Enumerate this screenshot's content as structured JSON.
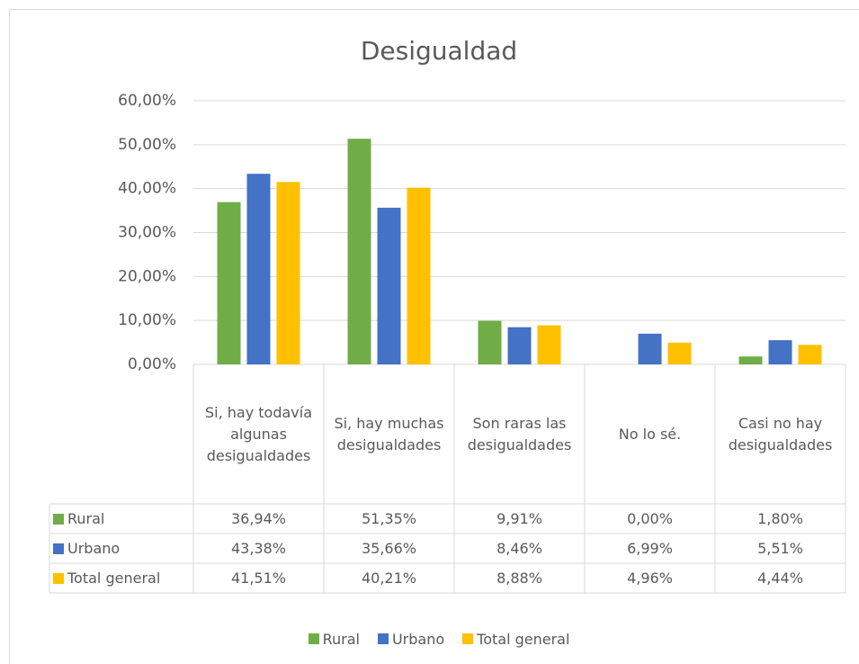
{
  "chart_data": {
    "type": "bar",
    "title": "Desigualdad",
    "categories": [
      "Si, hay todavía algunas desigualdades",
      "Si, hay muchas desigualdades",
      "Son raras las desigualdades",
      "No lo sé.",
      "Casi no hay desigualdades"
    ],
    "series": [
      {
        "name": "Rural",
        "color": "#70ad47",
        "values": [
          36.94,
          51.35,
          9.91,
          0,
          1.8
        ],
        "value_labels": [
          "36,94%",
          "51,35%",
          "9,91%",
          "0,00%",
          "1,80%"
        ]
      },
      {
        "name": "Urbano",
        "color": "#4472c4",
        "values": [
          43.38,
          35.66,
          8.46,
          6.99,
          5.51
        ],
        "value_labels": [
          "43,38%",
          "35,66%",
          "8,46%",
          "6,99%",
          "5,51%"
        ]
      },
      {
        "name": "Total general",
        "color": "#ffc000",
        "values": [
          41.51,
          40.21,
          8.88,
          4.96,
          4.44
        ],
        "value_labels": [
          "41,51%",
          "40,21%",
          "8,88%",
          "4,96%",
          "4,44%"
        ]
      }
    ],
    "ylim": [
      0,
      60
    ],
    "yticks": [
      {
        "value": 0,
        "label": "0,00%"
      },
      {
        "value": 10,
        "label": "10,00%"
      },
      {
        "value": 20,
        "label": "20,00%"
      },
      {
        "value": 30,
        "label": "30,00%"
      },
      {
        "value": 40,
        "label": "40,00%"
      },
      {
        "value": 50,
        "label": "50,00%"
      },
      {
        "value": 60,
        "label": "60,00%"
      }
    ],
    "grid": true,
    "data_table": true,
    "legend": "bottom"
  }
}
